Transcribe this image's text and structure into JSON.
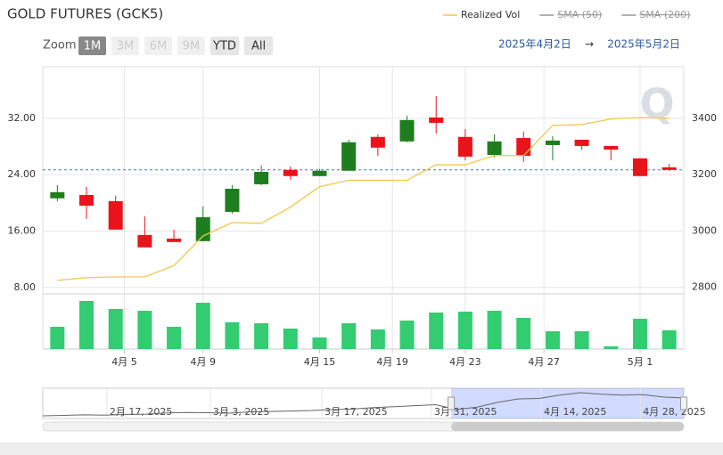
{
  "chart_data": {
    "type": "candlestick",
    "title": "GOLD FUTURES (GCK5)",
    "legend": [
      {
        "name": "Realized Vol",
        "color": "#f0c94a",
        "hidden": false
      },
      {
        "name": "SMA (50)",
        "color": "#999999",
        "hidden": true
      },
      {
        "name": "SMA (200)",
        "color": "#999999",
        "hidden": true
      }
    ],
    "zoom_label": "Zoom",
    "zoom_buttons": [
      {
        "label": "1M",
        "state": "active"
      },
      {
        "label": "3M",
        "state": "disabled"
      },
      {
        "label": "6M",
        "state": "disabled"
      },
      {
        "label": "9M",
        "state": "disabled"
      },
      {
        "label": "YTD",
        "state": "normal"
      },
      {
        "label": "All",
        "state": "normal"
      }
    ],
    "range_from": "2025年4月2日",
    "range_arrow": "→",
    "range_to": "2025年5月2日",
    "watermark": "Q",
    "up_color": "#1e7e1e",
    "down_color": "#e8141a",
    "volume_color": "#33cc70",
    "last_price_color": "#4a7ab0",
    "grid": true,
    "open": [
      3116,
      3128,
      3106,
      2986,
      2973,
      2964,
      3068,
      3166,
      3217,
      3195,
      3214,
      3334,
      3318,
      3403,
      3334,
      3270,
      3330,
      3305,
      3324,
      3302,
      3258,
      3226
    ],
    "high": [
      3163,
      3157,
      3125,
      3052,
      3005,
      3087,
      3163,
      3233,
      3229,
      3220,
      3324,
      3343,
      3409,
      3479,
      3362,
      3343,
      3353,
      3337,
      3324,
      3302,
      3258,
      3238
    ],
    "low": [
      3106,
      3043,
      3005,
      2942,
      2961,
      2964,
      3062,
      3163,
      3182,
      3195,
      3214,
      3267,
      3315,
      3346,
      3251,
      3261,
      3245,
      3251,
      3289,
      3251,
      3195,
      3214
    ],
    "close": [
      3138,
      3090,
      3005,
      2942,
      2961,
      3049,
      3150,
      3210,
      3195,
      3214,
      3315,
      3296,
      3394,
      3384,
      3264,
      3318,
      3267,
      3321,
      3302,
      3289,
      3195,
      3217
    ],
    "volume": [
      25,
      54,
      45,
      43,
      25,
      52,
      30,
      29,
      23,
      13,
      29,
      22,
      32,
      41,
      42,
      43,
      35,
      20,
      20,
      3,
      34,
      21
    ],
    "realized_vol": [
      9.0,
      9.4,
      9.5,
      9.5,
      11.1,
      15.3,
      17.2,
      17.1,
      19.4,
      22.3,
      23.2,
      23.2,
      23.2,
      25.4,
      25.4,
      26.7,
      26.7,
      31.0,
      31.1,
      31.9,
      32.1,
      32.0
    ],
    "ylim": [
      2777,
      3583
    ],
    "yticks": [
      2800,
      3000,
      3200,
      3400
    ],
    "y2lim": [
      7.1,
      39.3
    ],
    "y2ticks": [
      {
        "value": 8,
        "label": "8.00"
      },
      {
        "value": 16,
        "label": "16.00"
      },
      {
        "value": 24,
        "label": "24.00"
      },
      {
        "value": 32,
        "label": "32.00"
      }
    ],
    "xticks": [
      {
        "value": 2.3,
        "label": "4月 5"
      },
      {
        "value": 5.0,
        "label": "4月 9"
      },
      {
        "value": 9.0,
        "label": "4月 15"
      },
      {
        "value": 11.5,
        "label": "4月 19"
      },
      {
        "value": 14.0,
        "label": "4月 23"
      },
      {
        "value": 16.7,
        "label": "4月 27"
      },
      {
        "value": 20.0,
        "label": "5月 1"
      }
    ],
    "navigator": {
      "values": [
        2870,
        2880,
        2890,
        2885,
        2900,
        2905,
        2930,
        2940,
        2935,
        2925,
        2950,
        2960,
        2970,
        2980,
        3000,
        3010,
        3040,
        3060,
        3080,
        3100,
        3000,
        3050,
        3150,
        3220,
        3230,
        3300,
        3350,
        3320,
        3300,
        3310,
        3260,
        3240
      ],
      "selected": [
        19.75,
        31
      ],
      "xticks": [
        {
          "value": 3.1,
          "label": "2月 17, 2025"
        },
        {
          "value": 8.1,
          "label": "3月 3, 2025"
        },
        {
          "value": 13.5,
          "label": "3月 17, 2025"
        },
        {
          "value": 18.8,
          "label": "3月 31, 2025"
        },
        {
          "value": 24.1,
          "label": "4月 14, 2025"
        },
        {
          "value": 28.9,
          "label": "4月 28, 2025"
        }
      ]
    }
  }
}
